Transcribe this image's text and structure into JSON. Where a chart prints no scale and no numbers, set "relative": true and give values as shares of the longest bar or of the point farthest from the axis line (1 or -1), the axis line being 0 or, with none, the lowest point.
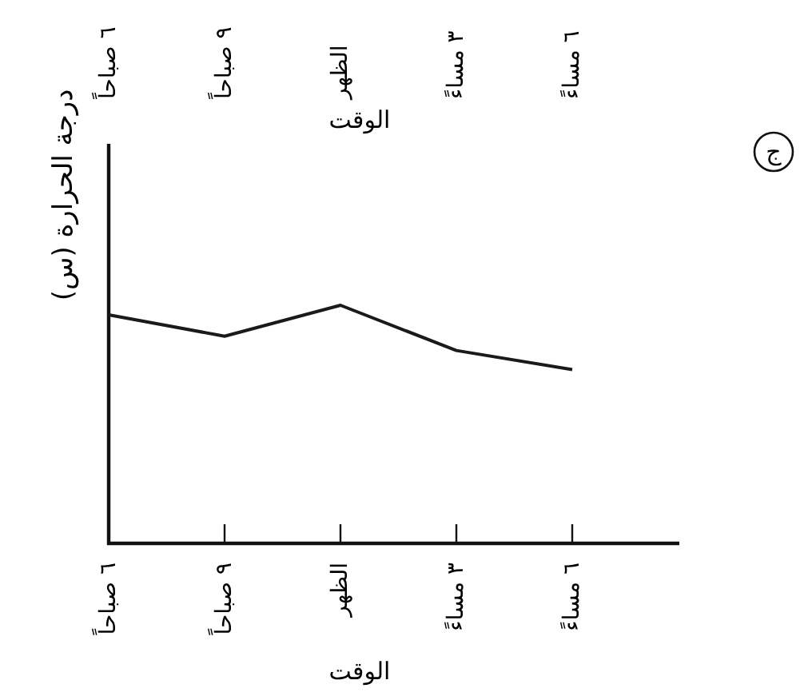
{
  "chart_data": {
    "type": "line",
    "xlabel": "الوقت",
    "x2label": "الوقت",
    "ylabel": "درجة الحرارة (س)",
    "categories": [
      "٦ صباحاً",
      "٩ صباحاً",
      "الظهر",
      "٣ مساءً",
      "٦ مساءً"
    ],
    "values": [
      0.96,
      0.87,
      1,
      0.81,
      0.73
    ],
    "color": "#1a1a1a",
    "relative": true,
    "annotations": [
      "ج"
    ]
  }
}
